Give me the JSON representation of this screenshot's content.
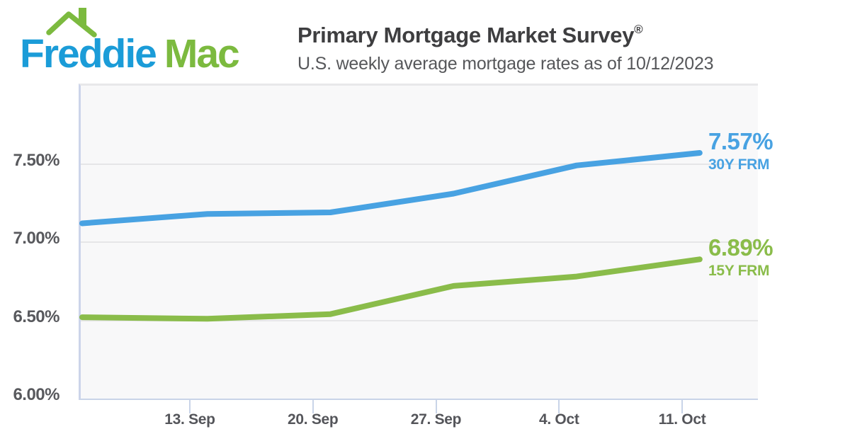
{
  "header": {
    "logo": {
      "word1": "Freddie",
      "word2": "Mac",
      "roof_icon": "house-roof-with-chimney"
    },
    "title": "Primary Mortgage Market Survey",
    "registered_mark": "®",
    "subtitle": "U.S. weekly average mortgage rates as of 10/12/2023"
  },
  "chart_data": {
    "type": "line",
    "title": "",
    "xlabel": "",
    "ylabel": "",
    "ylim": [
      6.0,
      8.0
    ],
    "grid": "horizontal-only",
    "legend": "end-of-line-labels",
    "plot_background": "#f8f8f9",
    "x_tick_labels": [
      "13. Sep",
      "20. Sep",
      "27. Sep",
      "4. Oct",
      "11. Oct"
    ],
    "y_tick_labels": [
      "7.50%",
      "7.00%",
      "6.50%",
      "6.00%"
    ],
    "y_tick_values": [
      7.5,
      7.0,
      6.5,
      6.0
    ],
    "series": [
      {
        "name": "30Y FRM",
        "color": "#48a2e2",
        "values": [
          7.12,
          7.18,
          7.19,
          7.31,
          7.49,
          7.57
        ],
        "end_value_label": "7.57%"
      },
      {
        "name": "15Y FRM",
        "color": "#8abc4a",
        "values": [
          6.52,
          6.51,
          6.54,
          6.72,
          6.78,
          6.89
        ],
        "end_value_label": "6.89%"
      }
    ]
  },
  "colors": {
    "logo_blue": "#1b9cd8",
    "logo_green": "#7cba3f",
    "series_blue": "#48a2e2",
    "series_green": "#8abc4a",
    "axis_line": "#c9d4e8",
    "gridline": "#e6e6e8",
    "title_text": "#3e3e40",
    "subtitle_text": "#56575a",
    "axis_label_text": "#55565a"
  }
}
